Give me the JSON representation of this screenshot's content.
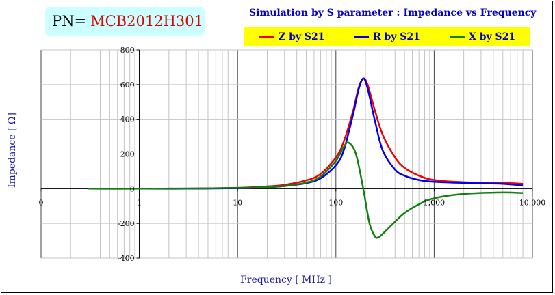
{
  "header": {
    "pn_label": "PN=",
    "pn_value": "MCB2012H301",
    "title": "Simulation by S parameter : Impedance vs Frequency"
  },
  "chart_data": {
    "type": "line",
    "title": "Simulation by S parameter : Impedance vs Frequency",
    "xlabel": "Frequency [ MHz ]",
    "ylabel": "Impedance [ Ω]",
    "xscale": "log",
    "xlim": [
      0.1,
      10000
    ],
    "ylim": [
      -400,
      800
    ],
    "x_tick_labels": [
      "0",
      "1",
      "10",
      "100",
      "1,000",
      "10,000"
    ],
    "y_ticks": [
      -400,
      -200,
      0,
      200,
      400,
      600,
      800
    ],
    "y_tick_labels": [
      "-400",
      "-200",
      "0",
      "200",
      "400",
      "600",
      "800"
    ],
    "grid": true,
    "legend_position": "top-right",
    "series": [
      {
        "name": "Z by S21",
        "color": "#ee0000",
        "x": [
          0.3,
          1,
          3,
          10,
          20,
          30,
          50,
          70,
          100,
          120,
          150,
          170,
          190,
          210,
          250,
          300,
          400,
          500,
          700,
          1000,
          2000,
          5000,
          8000
        ],
        "y": [
          0,
          0,
          1,
          5,
          13,
          22,
          48,
          85,
          180,
          270,
          450,
          580,
          635,
          600,
          450,
          310,
          180,
          120,
          75,
          50,
          37,
          33,
          28
        ]
      },
      {
        "name": "R by S21",
        "color": "#0000ee",
        "x": [
          0.3,
          1,
          3,
          10,
          20,
          30,
          50,
          70,
          100,
          120,
          150,
          170,
          190,
          210,
          250,
          300,
          400,
          500,
          700,
          1000,
          2000,
          5000,
          8000
        ],
        "y": [
          0,
          0,
          0,
          3,
          8,
          15,
          32,
          60,
          135,
          220,
          430,
          570,
          635,
          580,
          390,
          220,
          110,
          75,
          50,
          40,
          33,
          28,
          18
        ]
      },
      {
        "name": "X by S21",
        "color": "#108010",
        "x": [
          0.3,
          1,
          3,
          10,
          20,
          30,
          50,
          70,
          100,
          120,
          135,
          160,
          190,
          220,
          250,
          270,
          300,
          400,
          500,
          700,
          1000,
          2000,
          5000,
          8000
        ],
        "y": [
          0,
          0,
          1,
          4,
          9,
          16,
          35,
          70,
          160,
          240,
          265,
          200,
          0,
          -200,
          -275,
          -280,
          -260,
          -190,
          -140,
          -90,
          -55,
          -30,
          -22,
          -25
        ]
      }
    ]
  }
}
